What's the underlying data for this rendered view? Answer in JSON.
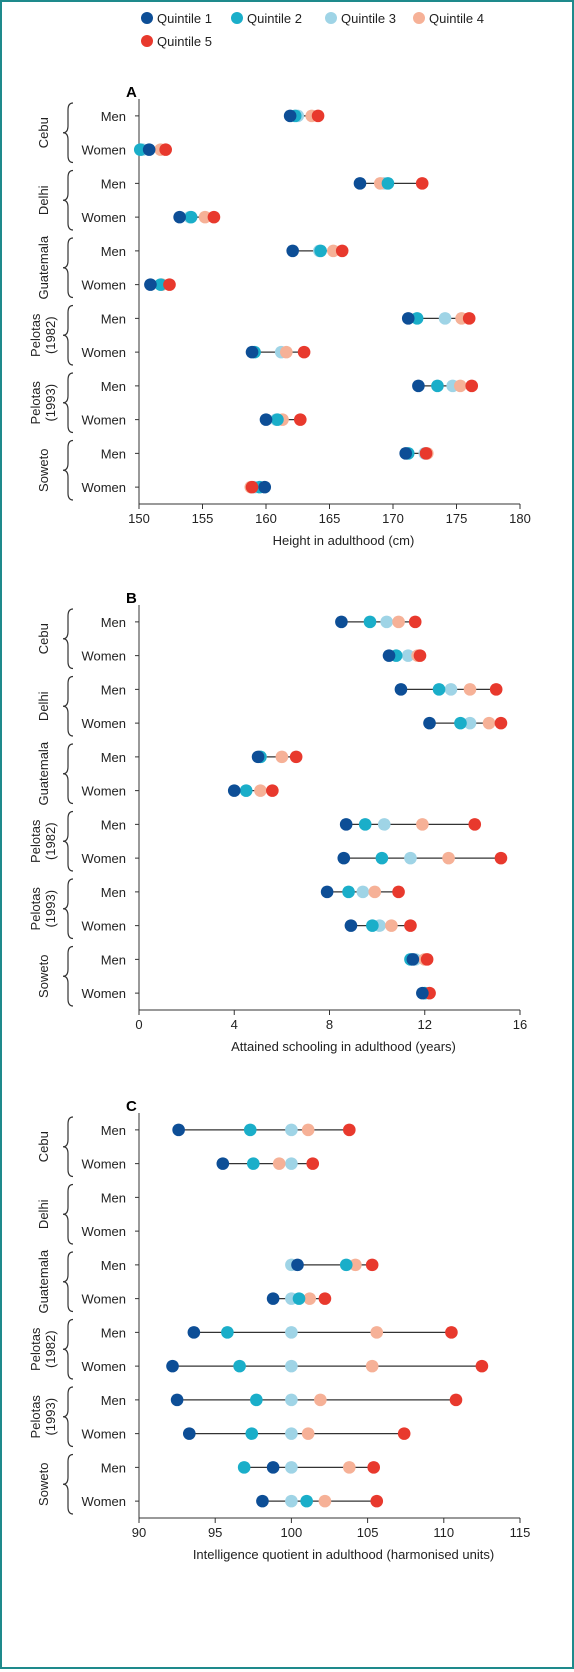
{
  "legend": [
    {
      "name": "Quintile 1",
      "color": "#0d4e96"
    },
    {
      "name": "Quintile 2",
      "color": "#1aaec9"
    },
    {
      "name": "Quintile 3",
      "color": "#9fd4e6"
    },
    {
      "name": "Quintile 4",
      "color": "#f6b197"
    },
    {
      "name": "Quintile 5",
      "color": "#e8392d"
    }
  ],
  "chart_data": [
    {
      "type": "scatter",
      "panel": "A",
      "xlabel": "Height in adulthood (cm)",
      "xlim": [
        150,
        180
      ],
      "xticks": [
        150,
        155,
        160,
        165,
        170,
        175,
        180
      ],
      "sites": [
        "Cebu",
        "Delhi",
        "Guatemala",
        "Pelotas (1982)",
        "Pelotas (1993)",
        "Soweto"
      ],
      "categories": [
        "Men",
        "Women",
        "Men",
        "Women",
        "Men",
        "Women",
        "Men",
        "Women",
        "Men",
        "Women",
        "Men",
        "Women"
      ],
      "series": [
        {
          "name": "Quintile 1",
          "values": [
            161.9,
            150.8,
            167.4,
            153.2,
            162.1,
            150.9,
            171.2,
            158.9,
            172.0,
            160.0,
            171.0,
            159.9
          ]
        },
        {
          "name": "Quintile 2",
          "values": [
            162.3,
            150.1,
            169.6,
            154.1,
            164.3,
            151.7,
            171.9,
            159.1,
            173.5,
            160.9,
            171.2,
            159.5
          ]
        },
        {
          "name": "Quintile 3",
          "values": [
            162.5,
            150.3,
            169.3,
            154.0,
            164.2,
            151.8,
            174.1,
            161.2,
            174.7,
            160.8,
            172.5,
            159.1
          ]
        },
        {
          "name": "Quintile 4",
          "values": [
            163.6,
            151.7,
            169.0,
            155.2,
            165.3,
            151.8,
            175.4,
            161.6,
            175.3,
            161.3,
            172.7,
            158.8
          ]
        },
        {
          "name": "Quintile 5",
          "values": [
            164.1,
            152.1,
            172.3,
            155.9,
            166.0,
            152.4,
            176.0,
            163.0,
            176.2,
            162.7,
            172.6,
            158.9
          ]
        }
      ]
    },
    {
      "type": "scatter",
      "panel": "B",
      "xlabel": "Attained schooling in adulthood (years)",
      "xlim": [
        0,
        16
      ],
      "xticks": [
        0,
        4,
        8,
        12,
        16
      ],
      "sites": [
        "Cebu",
        "Delhi",
        "Guatemala",
        "Pelotas (1982)",
        "Pelotas (1993)",
        "Soweto"
      ],
      "categories": [
        "Men",
        "Women",
        "Men",
        "Women",
        "Men",
        "Women",
        "Men",
        "Women",
        "Men",
        "Women",
        "Men",
        "Women"
      ],
      "series": [
        {
          "name": "Quintile 1",
          "values": [
            8.5,
            10.5,
            11.0,
            12.2,
            5.0,
            4.0,
            8.7,
            8.6,
            7.9,
            8.9,
            11.5,
            11.9
          ]
        },
        {
          "name": "Quintile 2",
          "values": [
            9.7,
            10.8,
            12.6,
            13.5,
            5.1,
            4.5,
            9.5,
            10.2,
            8.8,
            9.8,
            11.4,
            12.0
          ]
        },
        {
          "name": "Quintile 3",
          "values": [
            10.4,
            11.3,
            13.1,
            13.9,
            5.1,
            4.5,
            10.3,
            11.4,
            9.4,
            10.1,
            11.6,
            12.0
          ]
        },
        {
          "name": "Quintile 4",
          "values": [
            10.9,
            11.7,
            13.9,
            14.7,
            6.0,
            5.1,
            11.9,
            13.0,
            9.9,
            10.6,
            12.0,
            12.2
          ]
        },
        {
          "name": "Quintile 5",
          "values": [
            11.6,
            11.8,
            15.0,
            15.2,
            6.6,
            5.6,
            14.1,
            15.2,
            10.9,
            11.4,
            12.1,
            12.2
          ]
        }
      ]
    },
    {
      "type": "scatter",
      "panel": "C",
      "xlabel": "Intelligence quotient in adulthood (harmonised units)",
      "xlim": [
        90,
        115
      ],
      "xticks": [
        90,
        95,
        100,
        105,
        110,
        115
      ],
      "sites": [
        "Cebu",
        "Delhi",
        "Guatemala",
        "Pelotas (1982)",
        "Pelotas (1993)",
        "Soweto"
      ],
      "categories": [
        "Men",
        "Women",
        "Men",
        "Women",
        "Men",
        "Women",
        "Men",
        "Women",
        "Men",
        "Women",
        "Men",
        "Women"
      ],
      "series": [
        {
          "name": "Quintile 1",
          "values": [
            92.6,
            95.5,
            null,
            null,
            100.4,
            98.8,
            93.6,
            92.2,
            92.5,
            93.3,
            98.8,
            98.1
          ]
        },
        {
          "name": "Quintile 2",
          "values": [
            97.3,
            97.5,
            null,
            null,
            103.6,
            100.5,
            95.8,
            96.6,
            97.7,
            97.4,
            96.9,
            101.0
          ]
        },
        {
          "name": "Quintile 3",
          "values": [
            100.0,
            100.0,
            null,
            null,
            100.0,
            100.0,
            100.0,
            100.0,
            100.0,
            100.0,
            100.0,
            100.0
          ]
        },
        {
          "name": "Quintile 4",
          "values": [
            101.1,
            99.2,
            null,
            null,
            104.2,
            101.2,
            105.6,
            105.3,
            101.9,
            101.1,
            103.8,
            102.2
          ]
        },
        {
          "name": "Quintile 5",
          "values": [
            103.8,
            101.4,
            null,
            null,
            105.3,
            102.2,
            110.5,
            112.5,
            110.8,
            107.4,
            105.4,
            105.6
          ]
        }
      ]
    }
  ]
}
